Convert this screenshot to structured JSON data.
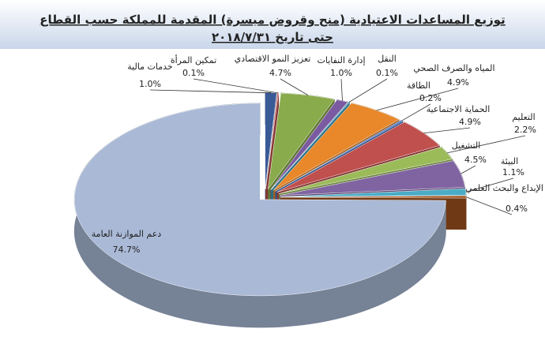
{
  "chart_data": {
    "type": "pie",
    "title": "توزيع المساعدات الاعتيادية (منح وقروض ميسرة) المقدمة للمملكة حسب القطاع",
    "subtitle": "حتى تاريخ ٢٠١٨/٧/٣١",
    "categories": [
      "خدمات مالية",
      "تمكين المرأة",
      "تعزيز النمو الاقتصادي",
      "إدارة النفايات",
      "النقل",
      "المياه والصرف الصحي",
      "الطاقة",
      "الحماية الاجتماعية",
      "التعليم",
      "التشغيل",
      "البيئة",
      "الإبداع والبحث العلمي",
      "دعم الموازنة العامة"
    ],
    "values": [
      1.0,
      0.1,
      4.7,
      1.0,
      0.1,
      4.9,
      0.2,
      4.9,
      2.2,
      4.5,
      1.1,
      0.4,
      74.7
    ],
    "value_labels": [
      "1.0%",
      "0.1%",
      "4.7%",
      "1.0%",
      "0.1%",
      "4.9%",
      "0.2%",
      "4.9%",
      "2.2%",
      "4.5%",
      "1.1%",
      "0.4%",
      "74.7%"
    ],
    "colors": [
      "#3a5a96",
      "#c0504d",
      "#8aab4c",
      "#7a5aa0",
      "#3aa0bf",
      "#e8882a",
      "#4472c4",
      "#c0504d",
      "#9bbb59",
      "#8064a2",
      "#4bacc6",
      "#a0521e",
      "#a9b9d6"
    ]
  }
}
